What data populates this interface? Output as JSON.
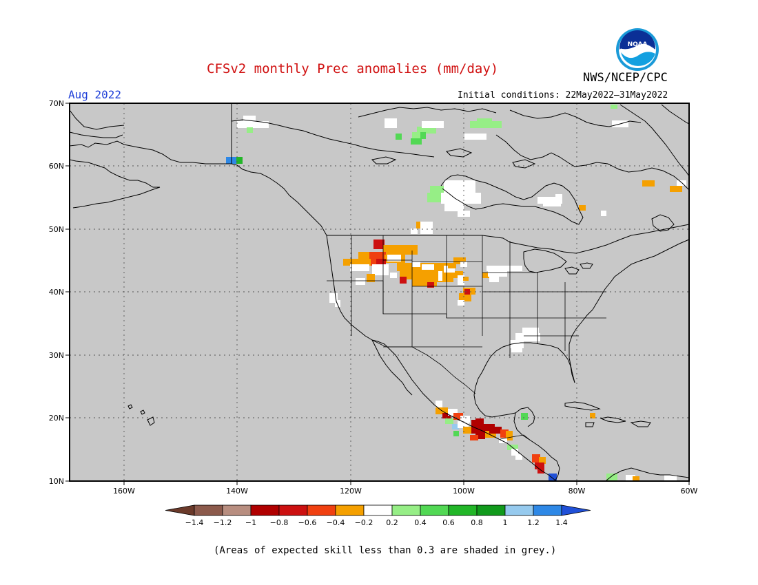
{
  "map": {
    "title": "CFSv2 monthly Prec anomalies (mm/day)",
    "agency": "NWS/NCEP/CPC",
    "logo_text": "NOAA",
    "month": "Aug 2022",
    "initial_conditions": "Initial conditions: 22May2022–31May2022",
    "footer": "(Areas of expected skill less than 0.3 are shaded in grey.)",
    "lat_labels": [
      "70N",
      "60N",
      "50N",
      "40N",
      "30N",
      "20N",
      "10N"
    ],
    "lon_labels": [
      "160W",
      "140W",
      "120W",
      "100W",
      "80W",
      "60W"
    ],
    "colorbar_labels": [
      "−1.4",
      "−1.2",
      "−1",
      "−0.8",
      "−0.6",
      "−0.4",
      "−0.2",
      "0.2",
      "0.4",
      "0.6",
      "0.8",
      "1",
      "1.2",
      "1.4"
    ],
    "colorbar_colors": [
      "#6b3a2a",
      "#8c5a4c",
      "#b88e80",
      "#b00000",
      "#cc1010",
      "#f04010",
      "#f5a000",
      "#ffffff",
      "#96ee86",
      "#52d854",
      "#22b628",
      "#119a1c",
      "#96caee",
      "#2e88e6",
      "#2050d8"
    ],
    "mask_color": "#c8c8c8",
    "lon_range": [
      -170,
      -60
    ],
    "lat_range": [
      10,
      70
    ]
  }
}
